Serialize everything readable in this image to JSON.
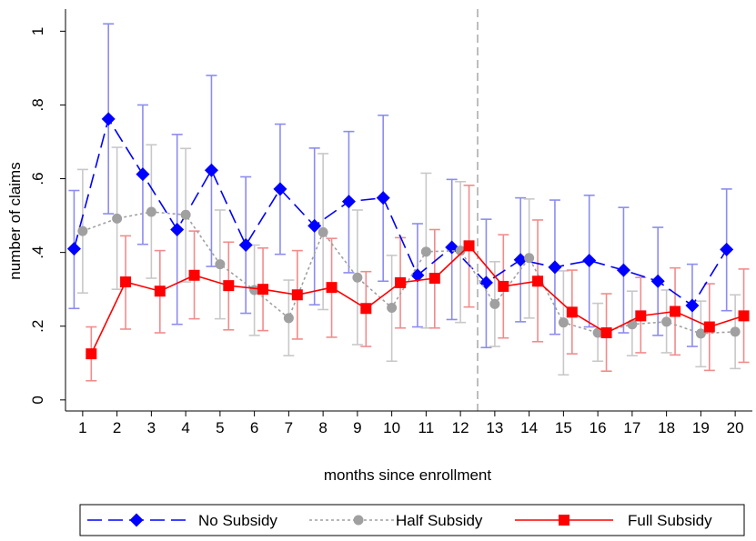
{
  "chart_data": {
    "type": "line",
    "title": "",
    "xlabel": "months since enrollment",
    "ylabel": "number of claims",
    "x": [
      1,
      2,
      3,
      4,
      5,
      6,
      7,
      8,
      9,
      10,
      11,
      12,
      13,
      14,
      15,
      16,
      17,
      18,
      19,
      20
    ],
    "xlim": [
      0.5,
      20.5
    ],
    "ylim": [
      -0.03,
      1.06
    ],
    "yticks": [
      0,
      0.2,
      0.4,
      0.6,
      0.8,
      1
    ],
    "ytick_labels": [
      "0",
      ".2",
      ".4",
      ".6",
      ".8",
      "1"
    ],
    "xtick_labels": [
      "1",
      "2",
      "3",
      "4",
      "5",
      "6",
      "7",
      "8",
      "9",
      "10",
      "11",
      "12",
      "13",
      "14",
      "15",
      "16",
      "17",
      "18",
      "19",
      "20"
    ],
    "reference_line_x": 12.5,
    "grid": false,
    "legend_position": "bottom",
    "series": [
      {
        "name": "No Subsidy",
        "color": "#0000ff",
        "errorbar_color": "#8c8cf0",
        "marker": "diamond",
        "line_style": "long-dash",
        "x_offset": -0.25,
        "values": [
          0.41,
          0.762,
          0.612,
          0.462,
          0.623,
          0.42,
          0.572,
          0.472,
          0.538,
          0.548,
          0.338,
          0.414,
          0.318,
          0.38,
          0.36,
          0.378,
          0.352,
          0.322,
          0.256,
          0.408
        ],
        "ci_low": [
          0.248,
          0.505,
          0.422,
          0.205,
          0.362,
          0.235,
          0.395,
          0.258,
          0.345,
          0.322,
          0.198,
          0.218,
          0.142,
          0.212,
          0.178,
          0.198,
          0.182,
          0.175,
          0.145,
          0.242
        ],
        "ci_high": [
          0.568,
          1.02,
          0.8,
          0.72,
          0.88,
          0.605,
          0.748,
          0.683,
          0.728,
          0.772,
          0.478,
          0.598,
          0.49,
          0.548,
          0.542,
          0.555,
          0.522,
          0.468,
          0.368,
          0.572
        ]
      },
      {
        "name": "Half Subsidy",
        "color": "#a0a0a0",
        "errorbar_color": "#c8c8c8",
        "marker": "circle",
        "line_style": "short-dash",
        "x_offset": 0.0,
        "values": [
          0.458,
          0.492,
          0.51,
          0.502,
          0.368,
          0.298,
          0.222,
          0.455,
          0.332,
          0.25,
          0.402,
          0.405,
          0.26,
          0.385,
          0.21,
          0.182,
          0.205,
          0.212,
          0.18,
          0.185
        ],
        "ci_low": [
          0.29,
          0.3,
          0.33,
          0.32,
          0.22,
          0.175,
          0.12,
          0.245,
          0.15,
          0.105,
          0.195,
          0.21,
          0.145,
          0.222,
          0.068,
          0.105,
          0.12,
          0.128,
          0.09,
          0.085
        ],
        "ci_high": [
          0.625,
          0.685,
          0.692,
          0.682,
          0.515,
          0.42,
          0.325,
          0.668,
          0.515,
          0.392,
          0.615,
          0.592,
          0.375,
          0.545,
          0.35,
          0.262,
          0.295,
          0.298,
          0.268,
          0.285
        ]
      },
      {
        "name": "Full Subsidy",
        "color": "#ff0000",
        "errorbar_color": "#f08c8c",
        "marker": "square",
        "line_style": "solid",
        "x_offset": 0.25,
        "values": [
          0.125,
          0.32,
          0.295,
          0.338,
          0.31,
          0.3,
          0.285,
          0.305,
          0.248,
          0.318,
          0.33,
          0.418,
          0.308,
          0.322,
          0.238,
          0.182,
          0.228,
          0.24,
          0.198,
          0.228
        ],
        "ci_low": [
          0.052,
          0.192,
          0.182,
          0.22,
          0.19,
          0.188,
          0.165,
          0.17,
          0.145,
          0.195,
          0.195,
          0.252,
          0.168,
          0.158,
          0.125,
          0.078,
          0.128,
          0.122,
          0.08,
          0.102
        ],
        "ci_high": [
          0.198,
          0.445,
          0.405,
          0.458,
          0.428,
          0.412,
          0.405,
          0.438,
          0.348,
          0.44,
          0.462,
          0.582,
          0.448,
          0.488,
          0.352,
          0.288,
          0.332,
          0.358,
          0.315,
          0.355
        ]
      }
    ]
  }
}
